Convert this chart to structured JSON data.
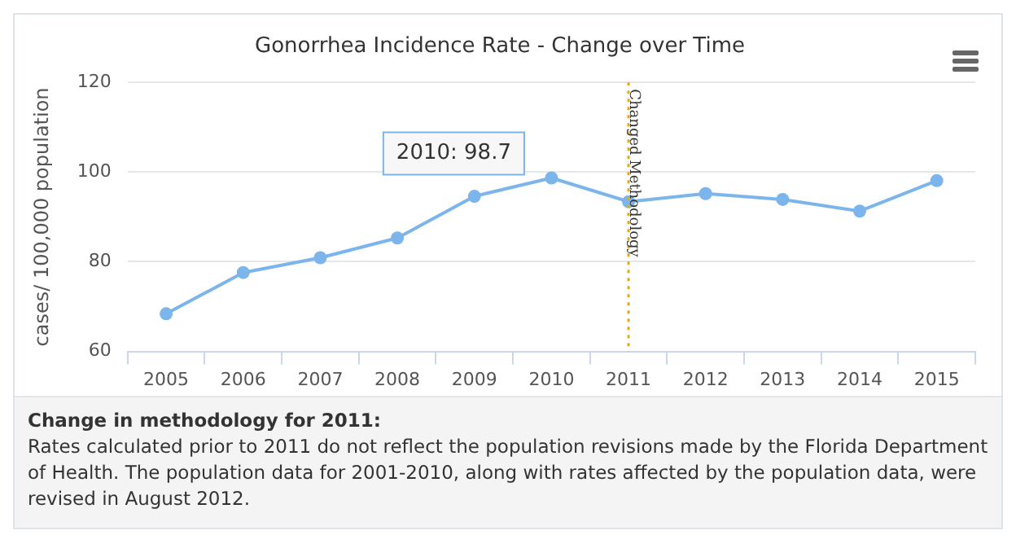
{
  "chart_data": {
    "type": "line",
    "title": "Gonorrhea Incidence Rate - Change over Time",
    "ylabel": "cases/ 100,000 population",
    "categories": [
      "2005",
      "2006",
      "2007",
      "2008",
      "2009",
      "2010",
      "2011",
      "2012",
      "2013",
      "2014",
      "2015"
    ],
    "series": [
      {
        "color": "#7cb5ec",
        "values": [
          68.4,
          77.6,
          80.9,
          85.3,
          94.6,
          98.7,
          93.4,
          95.2,
          93.9,
          91.3,
          98.1
        ]
      }
    ],
    "ylim": [
      60,
      120
    ],
    "yticks": [
      60,
      80,
      100,
      120
    ],
    "grid": "y",
    "legend": false,
    "marker": "circle",
    "line_style": "solid",
    "ref_lines": [
      {
        "axis": "x",
        "value": "2011",
        "label": "Changed Methodology",
        "color": "#e6a817",
        "line_style": "dotted"
      }
    ],
    "annotations": [
      {
        "text": "2010: 98.7",
        "x": "2010",
        "y": 98.7
      },
      "Change in methodology for 2011:",
      "Rates calculated prior to 2011 do not reflect the population revisions made by the Florida Department of Health. The population data for 2001-2010, along with rates affected by the population data, were revised in August 2012."
    ]
  }
}
